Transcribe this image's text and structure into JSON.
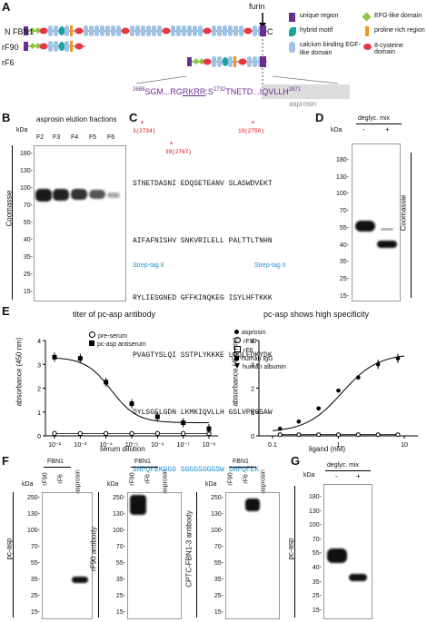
{
  "panels": {
    "A": "A",
    "B": "B",
    "C": "C",
    "D": "D",
    "E": "E",
    "F": "F",
    "G": "G"
  },
  "panelA": {
    "rows": [
      "FBN1",
      "rF90",
      "rF6"
    ],
    "n_label": "N",
    "c_label": "C",
    "furin_label": "furin",
    "legend": [
      {
        "label": "unique region",
        "color": "#6a2d91",
        "icon": "purple-square-icon"
      },
      {
        "label": "EFG-like domain",
        "color": "#8dc63f",
        "icon": "green-diamond-icon"
      },
      {
        "label": "hybrid motif",
        "color": "#1aa3a3",
        "icon": "teal-leaf-icon"
      },
      {
        "label": "proline rich region",
        "color": "#f7941d",
        "icon": "orange-bar-icon"
      },
      {
        "label": "calcium binding EGF-like domain",
        "color": "#9ec3e6",
        "icon": "blue-capsule-icon"
      },
      {
        "label": "8-cysteine domain",
        "color": "#e63946",
        "icon": "red-oval-icon"
      }
    ],
    "sequence_parts": {
      "start_num": "2688",
      "start": "SGM...RG",
      "rkrr": "RKRR",
      "colon": ":",
      "s": "S",
      "num2": "2732",
      "tnetd": "TNETD...IQVLLH",
      "end_num": "2871"
    },
    "asprosin_label": "asprosin"
  },
  "panelB": {
    "title": "asprosin elution fractions",
    "kda": "kDa",
    "lanes": [
      "F2",
      "F3",
      "F4",
      "F5",
      "F6"
    ],
    "markers": [
      "180-",
      "130-",
      "100-",
      "70-",
      "55-",
      "40-",
      "35-",
      "25-",
      "15-"
    ],
    "ylabel": "Coomassie"
  },
  "panelC": {
    "lines": [
      "STNETDASNI EDQSETEANV SLASWDVEKT",
      "AIFAFNISHV SNKVRILELL PALTTLTNHN",
      "RYLIESGNED GFFKINQKEG ISYLHFTKKK",
      "PVAGTYSLQI SSTPLYKKKE LNQLEDKYDK",
      "DYLSGELGDN LKMKIQVLLH GSLVPRGSAW",
      "SHPQFEKGGG SGGGSGGGSW SHPQFEK"
    ],
    "site1": "3(2734)",
    "site2": "38(2767)",
    "site3": "19(2750)",
    "strep1": "Strep-tag II",
    "strep2": "Strep-tag II"
  },
  "panelD": {
    "header": "deglyc. mix",
    "minus": "-",
    "plus": "+",
    "kda": "kDa",
    "markers": [
      "180-",
      "130-",
      "100-",
      "70-",
      "55-",
      "40-",
      "35-",
      "25-",
      "15-"
    ],
    "ylabel": "Coomassie"
  },
  "panelE": {
    "left": {
      "title": "titer of pc-asp antibody",
      "xlabel": "serum dilution",
      "ylabel": "absorbance (450 nm)",
      "legend": [
        "pre-serum",
        "pc-asp antiserum"
      ]
    },
    "right": {
      "title": "pc-asp shows high specificity",
      "xlabel": "ligand (nM)",
      "ylabel": "absorbance (450 nm)",
      "legend": [
        "asprosin",
        "rF90",
        "rF6",
        "human IgG",
        "human albumin"
      ]
    }
  },
  "chart_data": [
    {
      "type": "scatter",
      "title": "titer of pc-asp antibody",
      "xlabel": "serum dilution",
      "ylabel": "absorbance (450 nm)",
      "xscale": "log",
      "ylim": [
        0,
        4
      ],
      "x_ticks": [
        "10⁻²",
        "10⁻³",
        "10⁻⁴",
        "10⁻⁵",
        "10⁻⁶",
        "10⁻⁷",
        "10⁻⁸"
      ],
      "y_ticks": [
        "0",
        "1",
        "2",
        "3",
        "4"
      ],
      "series": [
        {
          "name": "pre-serum",
          "marker": "open-circle",
          "x_exp": [
            -2,
            -3,
            -4,
            -5,
            -6,
            -7,
            -8
          ],
          "values": [
            0.1,
            0.1,
            0.1,
            0.1,
            0.1,
            0.1,
            0.1
          ]
        },
        {
          "name": "pc-asp antiserum",
          "marker": "filled-square",
          "x_exp": [
            -2,
            -3,
            -4,
            -5,
            -6,
            -7,
            -8
          ],
          "values": [
            3.3,
            3.25,
            2.25,
            1.35,
            0.8,
            0.55,
            0.3
          ]
        }
      ]
    },
    {
      "type": "scatter",
      "title": "pc-asp shows high specificity",
      "xlabel": "ligand (nM)",
      "ylabel": "absorbance (450 nm)",
      "xscale": "log",
      "ylim": [
        0,
        4
      ],
      "x_ticks": [
        "0.1",
        "1",
        "10"
      ],
      "y_ticks": [
        "0",
        "1",
        "2",
        "3",
        "4"
      ],
      "series": [
        {
          "name": "asprosin",
          "marker": "filled-circle",
          "x": [
            0.13,
            0.25,
            0.5,
            1,
            2,
            4,
            8
          ],
          "values": [
            0.3,
            0.6,
            1.15,
            1.9,
            2.45,
            3.0,
            3.25
          ]
        },
        {
          "name": "rF90",
          "marker": "open-circle",
          "x": [
            0.13,
            0.25,
            0.5,
            1,
            2,
            4,
            8
          ],
          "values": [
            0.05,
            0.05,
            0.05,
            0.05,
            0.05,
            0.05,
            0.05
          ]
        }
      ]
    }
  ],
  "panelF": {
    "blots": [
      {
        "header": "FBN1",
        "lanes": [
          "rF90",
          "rF6",
          "asprosin"
        ],
        "ylabel": "pc-asp"
      },
      {
        "header": "FBN1",
        "lanes": [
          "rF90",
          "rF6",
          "asprosin"
        ],
        "ylabel": "rF90 antibody"
      },
      {
        "header": "FBN1",
        "lanes": [
          "rF90",
          "rF6",
          "asprosin"
        ],
        "ylabel": "CPTC-FBN1-3 antibody"
      }
    ],
    "kda": "kDa",
    "markers1": [
      "250-",
      "130-",
      "100-",
      "70-",
      "55-",
      "35-",
      "25-",
      "15-"
    ],
    "markers2": [
      "250-",
      "130-",
      "100-",
      "70-",
      "55-",
      "35-",
      "25-",
      "15-"
    ],
    "markers3": [
      "250-",
      "130-",
      "100-",
      "70-",
      "55-",
      "35-",
      "25-",
      "15-"
    ]
  },
  "panelG": {
    "header": "deglyc. mix",
    "minus": "-",
    "plus": "+",
    "kda": "kDa",
    "markers": [
      "180-",
      "130-",
      "100-",
      "70-",
      "55-",
      "40-",
      "35-",
      "25-",
      "15-"
    ],
    "ylabel": "pc-asp"
  }
}
